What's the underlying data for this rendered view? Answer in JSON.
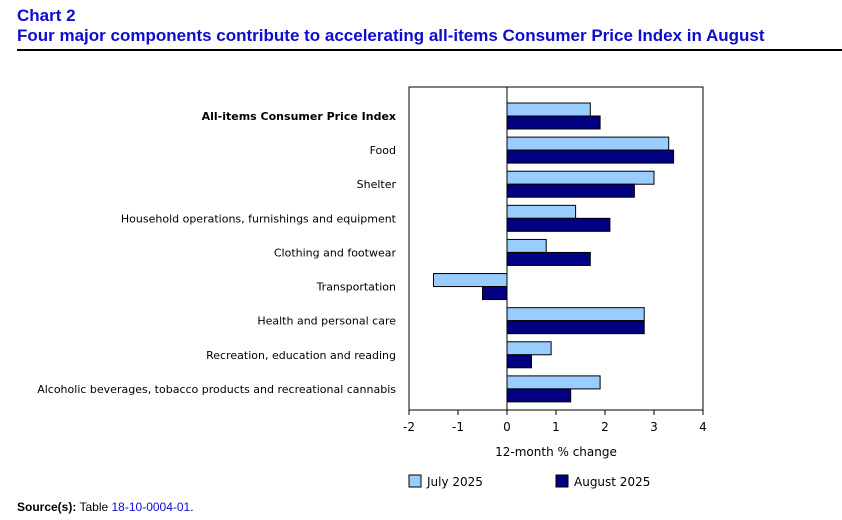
{
  "header": {
    "chart_number": "Chart 2",
    "title": "Four major components contribute to accelerating all-items Consumer Price Index in August"
  },
  "chart_data": {
    "type": "bar",
    "orientation": "horizontal",
    "categories": [
      "All-items Consumer Price Index",
      "Food",
      "Shelter",
      "Household operations, furnishings and equipment",
      "Clothing and footwear",
      "Transportation",
      "Health and personal care",
      "Recreation, education and reading",
      "Alcoholic beverages, tobacco products and recreational cannabis"
    ],
    "bold_categories": [
      "All-items Consumer Price Index"
    ],
    "series": [
      {
        "name": "July 2025",
        "color": "#99ccff",
        "values": [
          1.7,
          3.3,
          3.0,
          1.4,
          0.8,
          -1.5,
          2.8,
          0.9,
          1.9
        ]
      },
      {
        "name": "August 2025",
        "color": "#000080",
        "values": [
          1.9,
          3.4,
          2.6,
          2.1,
          1.7,
          -0.5,
          2.8,
          0.5,
          1.3
        ]
      }
    ],
    "xlabel": "12-month % change",
    "xlim": [
      -2,
      4
    ],
    "xticks": [
      "-2",
      "-1",
      "0",
      "1",
      "2",
      "3",
      "4"
    ],
    "legend_position": "bottom",
    "grid": false
  },
  "footer": {
    "source_label": "Source(s):",
    "source_prefix": "Table",
    "source_link": "18-10-0004-01",
    "source_suffix": "."
  }
}
